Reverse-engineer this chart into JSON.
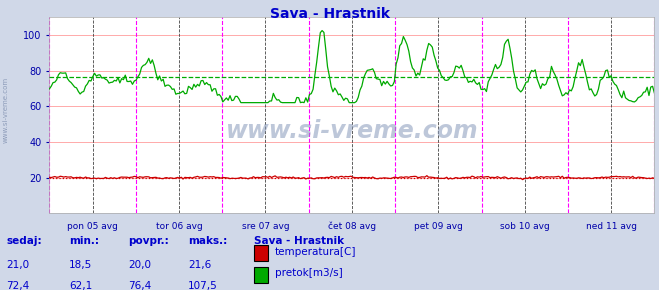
{
  "title": "Sava - Hrastnik",
  "title_color": "#0000cc",
  "bg_color": "#d0d8e8",
  "plot_bg_color": "#ffffff",
  "grid_color_h": "#ffaaaa",
  "grid_color_v": "#aaaaff",
  "ylim": [
    0,
    110
  ],
  "yticks": [
    20,
    40,
    60,
    80,
    100
  ],
  "avg_flow_value": 76.4,
  "avg_flow_color": "#00aa00",
  "avg_temp_value": 20.0,
  "avg_temp_color": "#cc0000",
  "vline_color_day": "#ff00ff",
  "vline_color_mid": "#444444",
  "tick_label_color": "#0000aa",
  "watermark": "www.si-vreme.com",
  "watermark_color": "#8899bb",
  "watermark_alpha": 0.55,
  "legend_title": "Sava - Hrastnik",
  "legend_title_color": "#0000cc",
  "legend_items": [
    {
      "label": "temperatura[C]",
      "color": "#cc0000"
    },
    {
      "label": "pretok[m3/s]",
      "color": "#00aa00"
    }
  ],
  "footer_labels": [
    "sedaj:",
    "min.:",
    "povpr.:",
    "maks.:"
  ],
  "footer_temp": [
    "21,0",
    "18,5",
    "20,0",
    "21,6"
  ],
  "footer_flow": [
    "72,4",
    "62,1",
    "76,4",
    "107,5"
  ],
  "footer_color": "#0000cc",
  "day_labels": [
    "pon 05 avg",
    "tor 06 avg",
    "sre 07 avg",
    "čet 08 avg",
    "pet 09 avg",
    "sob 10 avg",
    "ned 11 avg"
  ],
  "left_label": "www.si-vreme.com",
  "left_label_color": "#7788aa",
  "n_points": 336,
  "temp_base": 20.0,
  "flow_seed": 42
}
